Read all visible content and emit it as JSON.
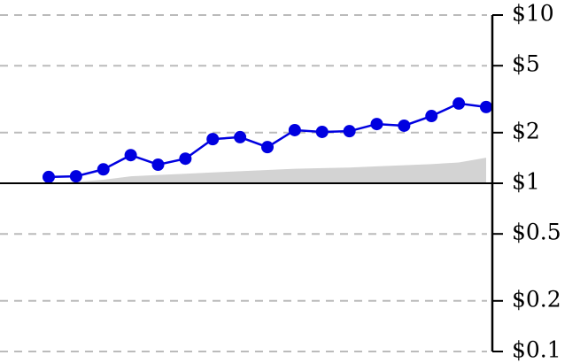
{
  "chart_data": {
    "type": "line",
    "categories": [
      null,
      null,
      null,
      null,
      null,
      null,
      null,
      null,
      null,
      null,
      null,
      null,
      null,
      null,
      null,
      null,
      null
    ],
    "series": [
      {
        "type": "area",
        "color": "#d3d3d3",
        "values": [
          1.0,
          1.02,
          1.05,
          1.1,
          1.12,
          1.14,
          1.16,
          1.18,
          1.2,
          1.22,
          1.23,
          1.24,
          1.26,
          1.28,
          1.3,
          1.33,
          1.42
        ]
      },
      {
        "type": "line",
        "color": "#0000e0",
        "values": [
          1.09,
          1.1,
          1.21,
          1.47,
          1.29,
          1.4,
          1.83,
          1.88,
          1.64,
          2.07,
          2.02,
          2.04,
          2.25,
          2.2,
          2.51,
          2.98,
          2.84
        ]
      }
    ],
    "ylim": [
      0.1,
      10
    ],
    "log_y": true,
    "y_axis_side": "right",
    "grid": true,
    "baseline": 1,
    "yticks": [
      {
        "value": 10,
        "label": "$10"
      },
      {
        "value": 5,
        "label": "$5"
      },
      {
        "value": 2,
        "label": "$2"
      },
      {
        "value": 1,
        "label": "$1"
      },
      {
        "value": 0.5,
        "label": "$0.5"
      },
      {
        "value": 0.2,
        "label": "$0.2"
      },
      {
        "value": 0.1,
        "label": "$0.1"
      }
    ]
  }
}
